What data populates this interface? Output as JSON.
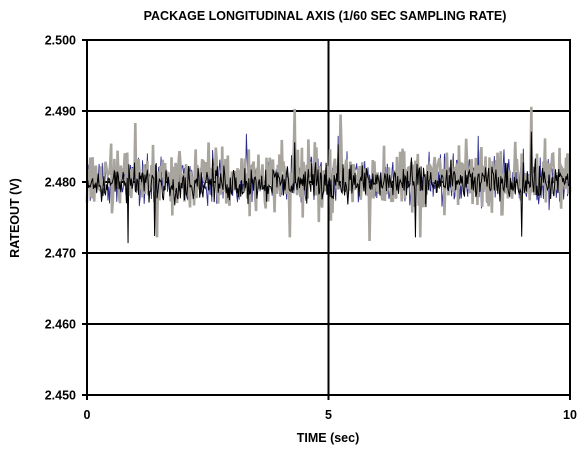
{
  "chart_data": {
    "type": "line",
    "title": "PACKAGE LONGITUDINAL AXIS (1/60 SEC SAMPLING RATE)",
    "xlabel": "TIME (sec)",
    "ylabel": "RATEOUT (V)",
    "xlim": [
      0,
      10
    ],
    "ylim": [
      2.45,
      2.5
    ],
    "xticks": [
      0,
      5,
      10
    ],
    "xtick_labels": [
      "0",
      "5",
      "10"
    ],
    "yticks": [
      2.45,
      2.46,
      2.47,
      2.48,
      2.49,
      2.5
    ],
    "ytick_labels": [
      "2.450",
      "2.460",
      "2.470",
      "2.480",
      "2.490",
      "2.500"
    ],
    "grid": true,
    "sampling_rate_hz": 60,
    "series": [
      {
        "color": "#a8a49e",
        "style": "noisy-trace",
        "center": 2.4805,
        "typical_range": [
          2.4755,
          2.4865
        ],
        "peaks": [
          [
            4.3,
            2.4903
          ],
          [
            9.2,
            2.4906
          ],
          [
            1.0,
            2.4883
          ],
          [
            5.25,
            2.4895
          ]
        ],
        "troughs": [
          [
            5.85,
            2.4717
          ],
          [
            4.2,
            2.4722
          ],
          [
            1.45,
            2.4722
          ],
          [
            6.9,
            2.4722
          ]
        ]
      },
      {
        "color": "#000000",
        "style": "noisy-trace",
        "center": 2.4799,
        "typical_range": [
          2.4765,
          2.4825
        ],
        "peaks": [
          [
            9.2,
            2.4871
          ],
          [
            5.2,
            2.4853
          ],
          [
            4.3,
            2.4856
          ]
        ],
        "troughs": [
          [
            0.85,
            2.4714
          ],
          [
            6.8,
            2.4722
          ],
          [
            9.0,
            2.4723
          ],
          [
            1.4,
            2.4724
          ]
        ]
      },
      {
        "color": "#2b2b8c",
        "style": "noisy-trace",
        "center": 2.4802,
        "typical_range": [
          2.4775,
          2.4855
        ],
        "peaks": [
          [
            2.6,
            2.4845
          ],
          [
            3.3,
            2.4868
          ],
          [
            5.2,
            2.4865
          ],
          [
            8.1,
            2.4865
          ]
        ],
        "troughs": []
      }
    ]
  }
}
